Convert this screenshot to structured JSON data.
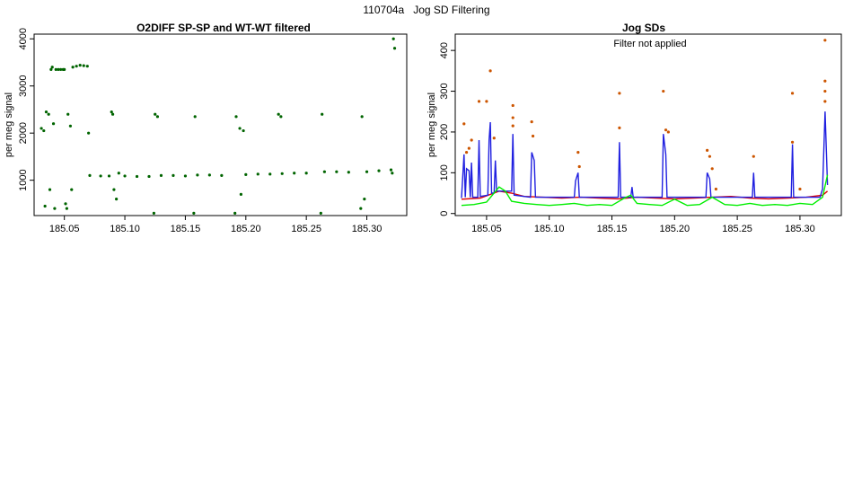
{
  "page_title": "110704a   Jog SD Filtering",
  "chart_data": [
    {
      "type": "scatter",
      "title": "O2DIFF SP-SP and WT-WT filtered",
      "xlabel": "",
      "ylabel": "per meg signal",
      "xlim": [
        185.025,
        185.333
      ],
      "ylim": [
        250,
        4100
      ],
      "x_ticks": [
        "185.05",
        "185.10",
        "185.15",
        "185.20",
        "185.25",
        "185.30"
      ],
      "y_ticks": [
        "1000",
        "2000",
        "3000",
        "4000"
      ],
      "grid": false,
      "colors": {
        "points": "#006400"
      },
      "series": [
        {
          "values": [
            [
              185.031,
              2100
            ],
            [
              185.033,
              2050
            ],
            [
              185.034,
              450
            ],
            [
              185.035,
              2450
            ],
            [
              185.037,
              2400
            ],
            [
              185.038,
              800
            ],
            [
              185.039,
              3350
            ],
            [
              185.04,
              3400
            ],
            [
              185.041,
              2200
            ],
            [
              185.042,
              400
            ],
            [
              185.043,
              3350
            ],
            [
              185.045,
              3350
            ],
            [
              185.047,
              3350
            ],
            [
              185.049,
              3350
            ],
            [
              185.05,
              3350
            ],
            [
              185.051,
              500
            ],
            [
              185.052,
              400
            ],
            [
              185.053,
              2400
            ],
            [
              185.055,
              2150
            ],
            [
              185.056,
              800
            ],
            [
              185.057,
              3400
            ],
            [
              185.06,
              3420
            ],
            [
              185.063,
              3440
            ],
            [
              185.066,
              3430
            ],
            [
              185.069,
              3420
            ],
            [
              185.07,
              2000
            ],
            [
              185.071,
              1100
            ],
            [
              185.08,
              1090
            ],
            [
              185.087,
              1090
            ],
            [
              185.089,
              2450
            ],
            [
              185.09,
              2400
            ],
            [
              185.091,
              800
            ],
            [
              185.093,
              600
            ],
            [
              185.095,
              1150
            ],
            [
              185.1,
              1090
            ],
            [
              185.11,
              1080
            ],
            [
              185.12,
              1080
            ],
            [
              185.124,
              300
            ],
            [
              185.125,
              2400
            ],
            [
              185.127,
              2350
            ],
            [
              185.13,
              1100
            ],
            [
              185.14,
              1100
            ],
            [
              185.15,
              1090
            ],
            [
              185.157,
              300
            ],
            [
              185.158,
              2350
            ],
            [
              185.16,
              1110
            ],
            [
              185.17,
              1110
            ],
            [
              185.18,
              1100
            ],
            [
              185.191,
              300
            ],
            [
              185.192,
              2350
            ],
            [
              185.195,
              2100
            ],
            [
              185.196,
              700
            ],
            [
              185.198,
              2050
            ],
            [
              185.2,
              1120
            ],
            [
              185.21,
              1130
            ],
            [
              185.22,
              1130
            ],
            [
              185.227,
              2400
            ],
            [
              185.229,
              2350
            ],
            [
              185.23,
              1140
            ],
            [
              185.24,
              1150
            ],
            [
              185.25,
              1150
            ],
            [
              185.262,
              300
            ],
            [
              185.263,
              2400
            ],
            [
              185.265,
              1180
            ],
            [
              185.275,
              1180
            ],
            [
              185.285,
              1170
            ],
            [
              185.295,
              400
            ],
            [
              185.296,
              2350
            ],
            [
              185.298,
              600
            ],
            [
              185.3,
              1180
            ],
            [
              185.31,
              1200
            ],
            [
              185.32,
              1220
            ],
            [
              185.321,
              1150
            ],
            [
              185.322,
              4000
            ],
            [
              185.323,
              3800
            ]
          ]
        }
      ]
    },
    {
      "type": "line",
      "title": "Jog SDs",
      "annotation": "Filter not applied",
      "xlabel": "",
      "ylabel": "per meg signal",
      "xlim": [
        185.025,
        185.333
      ],
      "ylim": [
        -5,
        440
      ],
      "x_ticks": [
        "185.05",
        "185.10",
        "185.15",
        "185.20",
        "185.25",
        "185.30"
      ],
      "y_ticks": [
        "0",
        "100",
        "200",
        "300",
        "400"
      ],
      "grid": false,
      "colors": {
        "red": "#e00000",
        "blue": "#2020e0",
        "green": "#00ee00",
        "orange": "#cc5500"
      },
      "series": [
        {
          "color": "red",
          "values": [
            [
              185.03,
              35
            ],
            [
              185.045,
              38
            ],
            [
              185.06,
              55
            ],
            [
              185.07,
              50
            ],
            [
              185.08,
              42
            ],
            [
              185.095,
              40
            ],
            [
              185.11,
              38
            ],
            [
              185.125,
              40
            ],
            [
              185.14,
              38
            ],
            [
              185.155,
              36
            ],
            [
              185.17,
              40
            ],
            [
              185.185,
              38
            ],
            [
              185.2,
              36
            ],
            [
              185.215,
              38
            ],
            [
              185.23,
              40
            ],
            [
              185.245,
              42
            ],
            [
              185.26,
              38
            ],
            [
              185.275,
              36
            ],
            [
              185.29,
              38
            ],
            [
              185.305,
              40
            ],
            [
              185.318,
              45
            ],
            [
              185.322,
              55
            ]
          ]
        },
        {
          "color": "blue",
          "values": [
            [
              185.03,
              38
            ],
            [
              185.032,
              145
            ],
            [
              185.033,
              40
            ],
            [
              185.034,
              110
            ],
            [
              185.036,
              105
            ],
            [
              185.037,
              40
            ],
            [
              185.038,
              125
            ],
            [
              185.039,
              40
            ],
            [
              185.043,
              40
            ],
            [
              185.044,
              180
            ],
            [
              185.045,
              42
            ],
            [
              185.051,
              45
            ],
            [
              185.052,
              180
            ],
            [
              185.053,
              224
            ],
            [
              185.054,
              50
            ],
            [
              185.056,
              50
            ],
            [
              185.057,
              130
            ],
            [
              185.058,
              55
            ],
            [
              185.07,
              55
            ],
            [
              185.071,
              195
            ],
            [
              185.072,
              45
            ],
            [
              185.085,
              40
            ],
            [
              185.086,
              150
            ],
            [
              185.088,
              130
            ],
            [
              185.089,
              40
            ],
            [
              185.12,
              40
            ],
            [
              185.121,
              80
            ],
            [
              185.123,
              100
            ],
            [
              185.124,
              40
            ],
            [
              185.155,
              40
            ],
            [
              185.156,
              175
            ],
            [
              185.157,
              40
            ],
            [
              185.165,
              40
            ],
            [
              185.166,
              65
            ],
            [
              185.167,
              40
            ],
            [
              185.19,
              40
            ],
            [
              185.191,
              195
            ],
            [
              185.193,
              145
            ],
            [
              185.194,
              40
            ],
            [
              185.225,
              40
            ],
            [
              185.226,
              100
            ],
            [
              185.228,
              85
            ],
            [
              185.229,
              40
            ],
            [
              185.262,
              40
            ],
            [
              185.263,
              100
            ],
            [
              185.264,
              40
            ],
            [
              185.293,
              40
            ],
            [
              185.294,
              170
            ],
            [
              185.295,
              40
            ],
            [
              185.316,
              40
            ],
            [
              185.318,
              60
            ],
            [
              185.32,
              250
            ],
            [
              185.322,
              70
            ]
          ]
        },
        {
          "color": "green",
          "values": [
            [
              185.03,
              20
            ],
            [
              185.04,
              22
            ],
            [
              185.05,
              28
            ],
            [
              185.06,
              65
            ],
            [
              185.065,
              55
            ],
            [
              185.07,
              30
            ],
            [
              185.08,
              25
            ],
            [
              185.09,
              22
            ],
            [
              185.1,
              20
            ],
            [
              185.11,
              22
            ],
            [
              185.12,
              25
            ],
            [
              185.13,
              20
            ],
            [
              185.14,
              22
            ],
            [
              185.15,
              20
            ],
            [
              185.16,
              38
            ],
            [
              185.165,
              45
            ],
            [
              185.17,
              25
            ],
            [
              185.18,
              22
            ],
            [
              185.19,
              20
            ],
            [
              185.2,
              35
            ],
            [
              185.21,
              20
            ],
            [
              185.22,
              22
            ],
            [
              185.23,
              40
            ],
            [
              185.24,
              22
            ],
            [
              185.25,
              20
            ],
            [
              185.26,
              25
            ],
            [
              185.27,
              20
            ],
            [
              185.28,
              22
            ],
            [
              185.29,
              20
            ],
            [
              185.3,
              25
            ],
            [
              185.31,
              22
            ],
            [
              185.318,
              40
            ],
            [
              185.322,
              95
            ]
          ]
        },
        {
          "color": "orange",
          "type": "scatter",
          "values": [
            [
              185.032,
              220
            ],
            [
              185.034,
              150
            ],
            [
              185.036,
              160
            ],
            [
              185.038,
              180
            ],
            [
              185.044,
              275
            ],
            [
              185.05,
              275
            ],
            [
              185.053,
              350
            ],
            [
              185.056,
              185
            ],
            [
              185.071,
              265
            ],
            [
              185.071,
              235
            ],
            [
              185.071,
              215
            ],
            [
              185.086,
              225
            ],
            [
              185.087,
              190
            ],
            [
              185.123,
              150
            ],
            [
              185.124,
              115
            ],
            [
              185.156,
              295
            ],
            [
              185.156,
              210
            ],
            [
              185.191,
              300
            ],
            [
              185.193,
              205
            ],
            [
              185.195,
              200
            ],
            [
              185.226,
              155
            ],
            [
              185.228,
              140
            ],
            [
              185.23,
              110
            ],
            [
              185.233,
              60
            ],
            [
              185.263,
              140
            ],
            [
              185.294,
              295
            ],
            [
              185.294,
              175
            ],
            [
              185.3,
              60
            ],
            [
              185.32,
              425
            ],
            [
              185.32,
              325
            ],
            [
              185.32,
              300
            ],
            [
              185.32,
              275
            ]
          ]
        }
      ]
    }
  ]
}
